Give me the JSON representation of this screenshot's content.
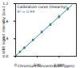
{
  "chart_data": {
    "type": "scatter",
    "x_label": "Chromium concentration (ppm)",
    "y_label": "LIBS signal intensity (a.u.)",
    "annotations": [
      "Calibration curve (linearity)",
      "R² = 0.99"
    ],
    "x": [
      0,
      100,
      200,
      400,
      600,
      800,
      1000,
      1200
    ],
    "values": [
      0.02,
      0.1,
      0.19,
      0.37,
      0.55,
      0.72,
      0.9,
      1.08
    ],
    "errors": [
      0.02,
      0.02,
      0.03,
      0.03,
      0.04,
      0.04,
      0.05,
      0.05
    ],
    "fit_x": [
      0,
      1300
    ],
    "fit_y": [
      0.01,
      1.17
    ],
    "color": "#2e8b57",
    "line_color": "#1f5fbf",
    "marker": "circle",
    "line_style": "solid",
    "xlim": [
      0,
      1400
    ],
    "xticks": [
      0,
      500,
      1000
    ],
    "ylim": [
      0,
      1.2
    ],
    "yticks": [
      0,
      0.4,
      0.8,
      1.2
    ],
    "grid": false
  }
}
